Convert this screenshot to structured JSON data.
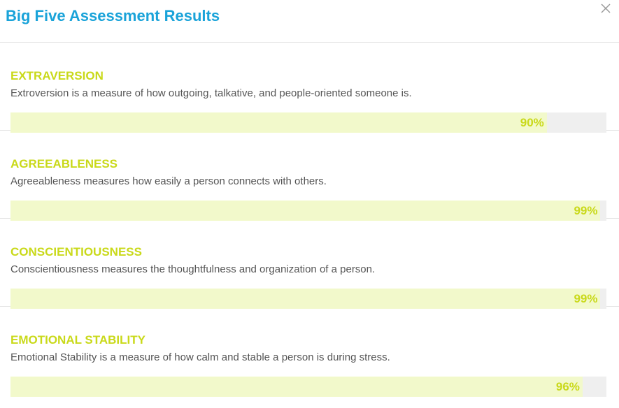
{
  "header": {
    "title": "Big Five Assessment Results",
    "close_icon": "close-icon"
  },
  "traits": [
    {
      "name": "EXTRAVERSION",
      "description": "Extroversion is a measure of how outgoing, talkative, and people-oriented someone is.",
      "percent_label": "90%",
      "percent": 90
    },
    {
      "name": "AGREEABLENESS",
      "description": "Agreeableness measures how easily a person connects with others.",
      "percent_label": "99%",
      "percent": 99
    },
    {
      "name": "CONSCIENTIOUSNESS",
      "description": "Conscientiousness measures the thoughtfulness and organization of a person.",
      "percent_label": "99%",
      "percent": 99
    },
    {
      "name": "EMOTIONAL STABILITY",
      "description": "Emotional Stability is a measure of how calm and stable a person is during stress.",
      "percent_label": "96%",
      "percent": 96
    }
  ],
  "colors": {
    "title": "#1aa3d9",
    "accent": "#c9d919",
    "bar_fill": "#f2f9cb",
    "bar_track": "#efefef"
  }
}
